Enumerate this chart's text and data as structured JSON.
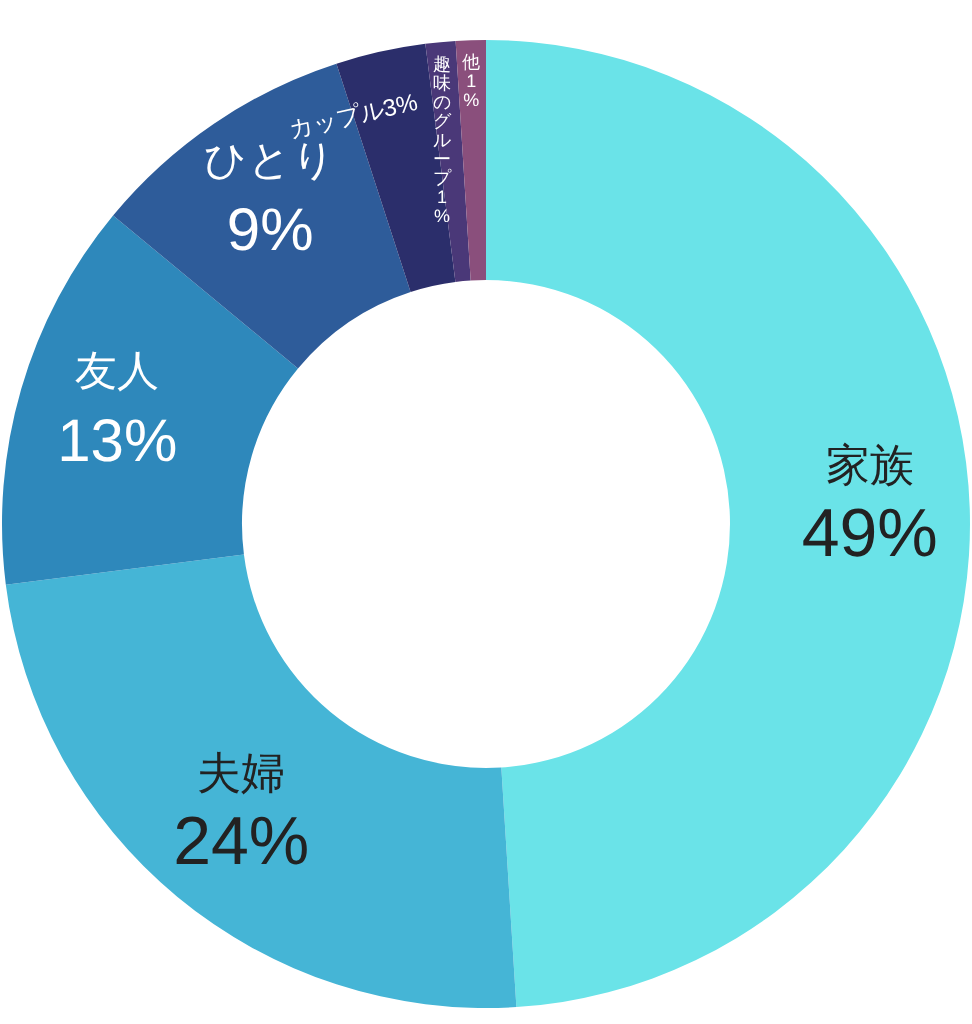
{
  "chart_data": {
    "type": "donut",
    "categories": [
      "家族",
      "夫婦",
      "友人",
      "ひとり",
      "カップル",
      "趣味のグループ",
      "他"
    ],
    "values": [
      49,
      24,
      13,
      9,
      3,
      1,
      1
    ],
    "value_labels": [
      "49%",
      "24%",
      "13%",
      "9%",
      "3%",
      "1%",
      "1%"
    ],
    "colors": [
      "#6ae3e8",
      "#45b5d6",
      "#2e88bb",
      "#2e5c9a",
      "#2b2e6b",
      "#4a3878",
      "#8a4f7c"
    ],
    "legend": false
  }
}
